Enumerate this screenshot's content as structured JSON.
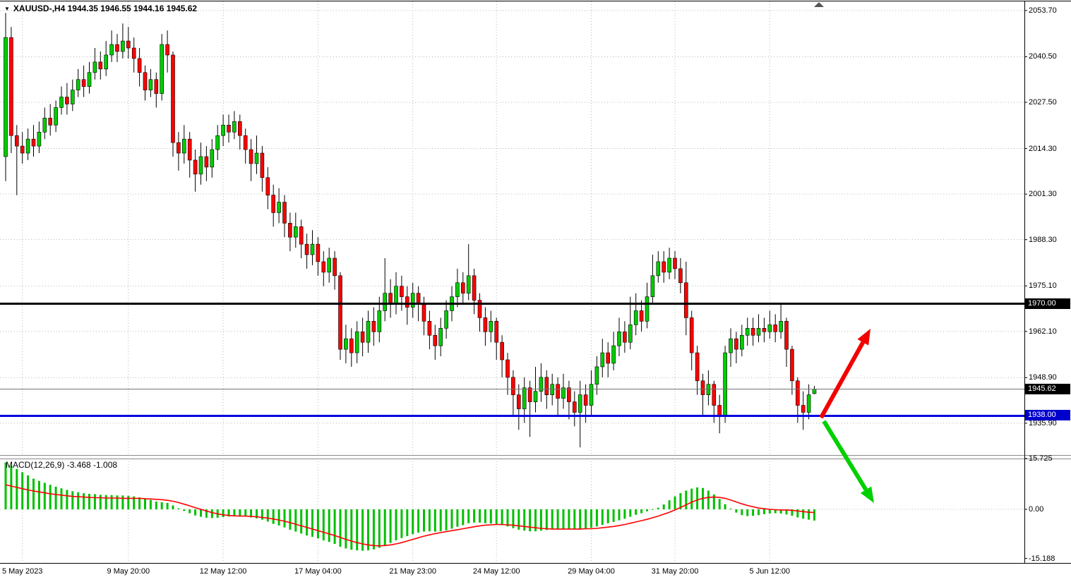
{
  "header": {
    "dropdown_icon": "▼",
    "display": "XAUUSD-,H4  1944.35 1946.55 1944.16 1945.62"
  },
  "macd": {
    "label": "MACD(12,26,9) -3.468 -1.008"
  },
  "price_axis": {
    "ticks": [
      2053.7,
      2040.5,
      2027.5,
      2014.3,
      2001.3,
      1988.3,
      1975.1,
      1962.1,
      1948.9,
      1935.9
    ],
    "badges": [
      {
        "text": "1970.00",
        "price": 1970.0,
        "bg": "#000000"
      },
      {
        "text": "1945.62",
        "price": 1945.62,
        "bg": "#000000"
      },
      {
        "text": "1938.00",
        "price": 1938.0,
        "bg": "#0000cd"
      }
    ]
  },
  "macd_axis": {
    "ticks": [
      "15.725",
      "0.00",
      "-15.188"
    ]
  },
  "time_axis": {
    "labels": [
      {
        "text": "5 May 2023",
        "candle_index": 3
      },
      {
        "text": "9 May 20:00",
        "candle_index": 22
      },
      {
        "text": "12 May 12:00",
        "candle_index": 39
      },
      {
        "text": "17 May 04:00",
        "candle_index": 56
      },
      {
        "text": "21 May 23:00",
        "candle_index": 73
      },
      {
        "text": "24 May 12:00",
        "candle_index": 88
      },
      {
        "text": "29 May 04:00",
        "candle_index": 105
      },
      {
        "text": "31 May 20:00",
        "candle_index": 120
      },
      {
        "text": "5 Jun 12:00",
        "candle_index": 137
      }
    ]
  },
  "colors": {
    "up": "#00cc00",
    "down": "#ff0000",
    "wick": "#000000",
    "grid": "#b8b8b8",
    "macd_hist": "#00c000",
    "macd_signal": "#ff0000",
    "resistance": "#000000",
    "support": "#0000e0",
    "last_price_line": "#707070",
    "arrow_up": "#f20000",
    "arrow_down": "#00d000"
  },
  "chart_data": {
    "type": "candlestick",
    "symbol": "XAUUSD-",
    "timeframe": "H4",
    "last_ohlc": {
      "open": 1944.35,
      "high": 1946.55,
      "low": 1944.16,
      "close": 1945.62
    },
    "levels": {
      "resistance": 1970.0,
      "support": 1938.0,
      "last_price": 1945.62
    },
    "ylim": [
      1926.5,
      2056.7
    ],
    "grid": true,
    "candles": [
      [
        2012,
        2053,
        2005,
        2046
      ],
      [
        2046,
        2049,
        2013,
        2018
      ],
      [
        2018,
        2021,
        2001,
        2015
      ],
      [
        2015,
        2019,
        2010,
        2013
      ],
      [
        2013,
        2020,
        2011,
        2017
      ],
      [
        2017,
        2021,
        2012,
        2015
      ],
      [
        2015,
        2022,
        2013,
        2019
      ],
      [
        2019,
        2026,
        2017,
        2023
      ],
      [
        2023,
        2027,
        2018,
        2021
      ],
      [
        2021,
        2028,
        2019,
        2026
      ],
      [
        2026,
        2032,
        2024,
        2029
      ],
      [
        2029,
        2033,
        2024,
        2027
      ],
      [
        2027,
        2034,
        2025,
        2031
      ],
      [
        2031,
        2037,
        2029,
        2034
      ],
      [
        2034,
        2038,
        2029,
        2032
      ],
      [
        2032,
        2039,
        2030,
        2036
      ],
      [
        2036,
        2043,
        2034,
        2039
      ],
      [
        2039,
        2042,
        2034,
        2037
      ],
      [
        2037,
        2045,
        2035,
        2041
      ],
      [
        2041,
        2048,
        2039,
        2044
      ],
      [
        2044,
        2047,
        2039,
        2042
      ],
      [
        2042,
        2050,
        2040,
        2045
      ],
      [
        2045,
        2049,
        2040,
        2043
      ],
      [
        2043,
        2046,
        2036,
        2040
      ],
      [
        2040,
        2043,
        2032,
        2036
      ],
      [
        2036,
        2038,
        2028,
        2031
      ],
      [
        2031,
        2037,
        2029,
        2034
      ],
      [
        2034,
        2036,
        2026,
        2030
      ],
      [
        2030,
        2047,
        2028,
        2044
      ],
      [
        2044,
        2048,
        2036,
        2041
      ],
      [
        2041,
        2042,
        2012,
        2016
      ],
      [
        2016,
        2019,
        2008,
        2013
      ],
      [
        2013,
        2021,
        2010,
        2017
      ],
      [
        2017,
        2019,
        2006,
        2011
      ],
      [
        2011,
        2014,
        2002,
        2007
      ],
      [
        2007,
        2016,
        2004,
        2012
      ],
      [
        2012,
        2015,
        2005,
        2009
      ],
      [
        2009,
        2017,
        2006,
        2014
      ],
      [
        2014,
        2021,
        2011,
        2018
      ],
      [
        2018,
        2024,
        2015,
        2021
      ],
      [
        2021,
        2024,
        2016,
        2019
      ],
      [
        2019,
        2025,
        2017,
        2022
      ],
      [
        2022,
        2024,
        2014,
        2018
      ],
      [
        2018,
        2020,
        2010,
        2014
      ],
      [
        2014,
        2017,
        2005,
        2010
      ],
      [
        2010,
        2018,
        2007,
        2013
      ],
      [
        2013,
        2015,
        2002,
        2006
      ],
      [
        2006,
        2009,
        1997,
        2001
      ],
      [
        2001,
        2004,
        1992,
        1996
      ],
      [
        1996,
        2003,
        1993,
        1999
      ],
      [
        1999,
        2001,
        1989,
        1993
      ],
      [
        1993,
        1996,
        1985,
        1989
      ],
      [
        1989,
        1996,
        1986,
        1992
      ],
      [
        1992,
        1994,
        1983,
        1987
      ],
      [
        1987,
        1990,
        1980,
        1984
      ],
      [
        1984,
        1991,
        1981,
        1987
      ],
      [
        1987,
        1989,
        1978,
        1982
      ],
      [
        1982,
        1985,
        1975,
        1979
      ],
      [
        1979,
        1986,
        1976,
        1983
      ],
      [
        1983,
        1985,
        1974,
        1978
      ],
      [
        1978,
        1979,
        1954,
        1957
      ],
      [
        1957,
        1964,
        1953,
        1960
      ],
      [
        1960,
        1963,
        1952,
        1956
      ],
      [
        1956,
        1965,
        1953,
        1962
      ],
      [
        1962,
        1966,
        1955,
        1959
      ],
      [
        1959,
        1968,
        1956,
        1965
      ],
      [
        1965,
        1969,
        1958,
        1962
      ],
      [
        1962,
        1972,
        1959,
        1968
      ],
      [
        1968,
        1983,
        1965,
        1973
      ],
      [
        1973,
        1977,
        1966,
        1970
      ],
      [
        1970,
        1979,
        1967,
        1975
      ],
      [
        1975,
        1978,
        1968,
        1972
      ],
      [
        1972,
        1975,
        1964,
        1969
      ],
      [
        1969,
        1976,
        1966,
        1973
      ],
      [
        1973,
        1975,
        1965,
        1970
      ],
      [
        1970,
        1972,
        1961,
        1965
      ],
      [
        1965,
        1968,
        1957,
        1961
      ],
      [
        1961,
        1964,
        1954,
        1958
      ],
      [
        1958,
        1966,
        1955,
        1963
      ],
      [
        1963,
        1971,
        1960,
        1968
      ],
      [
        1968,
        1975,
        1965,
        1972
      ],
      [
        1972,
        1980,
        1969,
        1976
      ],
      [
        1976,
        1979,
        1970,
        1973
      ],
      [
        1973,
        1987,
        1971,
        1978
      ],
      [
        1978,
        1980,
        1967,
        1971
      ],
      [
        1971,
        1973,
        1962,
        1966
      ],
      [
        1966,
        1969,
        1958,
        1962
      ],
      [
        1962,
        1968,
        1959,
        1965
      ],
      [
        1965,
        1966,
        1954,
        1959
      ],
      [
        1959,
        1961,
        1949,
        1954
      ],
      [
        1954,
        1956,
        1944,
        1949
      ],
      [
        1949,
        1951,
        1938,
        1944
      ],
      [
        1944,
        1947,
        1934,
        1940
      ],
      [
        1940,
        1949,
        1936,
        1946
      ],
      [
        1946,
        1948,
        1932,
        1942
      ],
      [
        1942,
        1952,
        1939,
        1945
      ],
      [
        1945,
        1953,
        1942,
        1949
      ],
      [
        1949,
        1951,
        1940,
        1944
      ],
      [
        1944,
        1950,
        1941,
        1947
      ],
      [
        1947,
        1949,
        1938,
        1943
      ],
      [
        1943,
        1950,
        1940,
        1946
      ],
      [
        1946,
        1948,
        1937,
        1942
      ],
      [
        1942,
        1945,
        1935,
        1939
      ],
      [
        1939,
        1948,
        1929,
        1944
      ],
      [
        1944,
        1947,
        1936,
        1941
      ],
      [
        1941,
        1951,
        1938,
        1947
      ],
      [
        1947,
        1955,
        1944,
        1952
      ],
      [
        1952,
        1960,
        1949,
        1956
      ],
      [
        1956,
        1959,
        1949,
        1953
      ],
      [
        1953,
        1962,
        1951,
        1958
      ],
      [
        1958,
        1966,
        1955,
        1962
      ],
      [
        1962,
        1965,
        1956,
        1959
      ],
      [
        1959,
        1972,
        1957,
        1964
      ],
      [
        1964,
        1973,
        1961,
        1968
      ],
      [
        1968,
        1971,
        1962,
        1965
      ],
      [
        1965,
        1976,
        1963,
        1972
      ],
      [
        1972,
        1984,
        1970,
        1978
      ],
      [
        1978,
        1985,
        1976,
        1982
      ],
      [
        1982,
        1985,
        1976,
        1979
      ],
      [
        1979,
        1986,
        1977,
        1983
      ],
      [
        1983,
        1985,
        1977,
        1980
      ],
      [
        1980,
        1983,
        1973,
        1976
      ],
      [
        1976,
        1982,
        1961,
        1966
      ],
      [
        1966,
        1968,
        1951,
        1956
      ],
      [
        1956,
        1958,
        1944,
        1948
      ],
      [
        1948,
        1950,
        1938,
        1944
      ],
      [
        1944,
        1951,
        1941,
        1947
      ],
      [
        1947,
        1948,
        1936,
        1941
      ],
      [
        1941,
        1944,
        1933,
        1938
      ],
      [
        1938,
        1958,
        1936,
        1956
      ],
      [
        1956,
        1963,
        1952,
        1960
      ],
      [
        1960,
        1962,
        1953,
        1957
      ],
      [
        1957,
        1964,
        1955,
        1961
      ],
      [
        1961,
        1966,
        1958,
        1963
      ],
      [
        1963,
        1966,
        1958,
        1961
      ],
      [
        1961,
        1967,
        1959,
        1963
      ],
      [
        1963,
        1966,
        1959,
        1962
      ],
      [
        1962,
        1968,
        1960,
        1964
      ],
      [
        1964,
        1967,
        1959,
        1962
      ],
      [
        1962,
        1970,
        1960,
        1965
      ],
      [
        1965,
        1966,
        1952,
        1957
      ],
      [
        1957,
        1958,
        1944,
        1948
      ],
      [
        1948,
        1949,
        1936,
        1941
      ],
      [
        1941,
        1945,
        1934,
        1939
      ],
      [
        1939,
        1947,
        1937,
        1944
      ],
      [
        1944.35,
        1946.55,
        1944.16,
        1945.62
      ]
    ],
    "macd": {
      "params": [
        12,
        26,
        9
      ],
      "last_macd": -3.468,
      "last_signal": -1.008,
      "ylim": [
        -15.188,
        15.725
      ],
      "histogram": [
        14.5,
        13.5,
        12.5,
        11.5,
        10.5,
        9.5,
        8.8,
        8.2,
        7.6,
        7.0,
        6.5,
        6.0,
        5.6,
        5.3,
        5.0,
        4.8,
        4.7,
        4.5,
        4.4,
        4.4,
        4.3,
        4.3,
        4.2,
        4.0,
        3.7,
        3.3,
        2.9,
        2.4,
        2.2,
        2.0,
        1.2,
        0.3,
        -0.5,
        -1.2,
        -1.9,
        -2.3,
        -2.6,
        -2.7,
        -2.6,
        -2.4,
        -2.2,
        -2.0,
        -2.0,
        -2.2,
        -2.5,
        -2.8,
        -3.2,
        -3.8,
        -4.5,
        -5.0,
        -5.6,
        -6.3,
        -6.9,
        -7.5,
        -8.1,
        -8.5,
        -9.0,
        -9.6,
        -10.1,
        -10.7,
        -11.6,
        -12.1,
        -12.5,
        -12.7,
        -12.8,
        -12.7,
        -12.4,
        -11.9,
        -11.2,
        -10.4,
        -9.6,
        -8.9,
        -8.3,
        -7.7,
        -7.2,
        -6.9,
        -6.8,
        -6.9,
        -6.8,
        -6.5,
        -6.0,
        -5.4,
        -4.9,
        -4.3,
        -4.1,
        -4.1,
        -4.3,
        -4.4,
        -4.6,
        -4.9,
        -5.3,
        -5.8,
        -6.3,
        -6.6,
        -6.8,
        -6.8,
        -6.6,
        -6.4,
        -6.2,
        -6.1,
        -6.0,
        -6.0,
        -6.1,
        -6.1,
        -6.0,
        -5.7,
        -5.3,
        -4.8,
        -4.3,
        -3.9,
        -3.4,
        -2.9,
        -2.3,
        -1.7,
        -1.2,
        -0.6,
        0.1,
        0.5,
        1.5,
        2.8,
        4.0,
        5.0,
        5.8,
        6.4,
        6.8,
        6.6,
        5.8,
        4.6,
        3.2,
        1.6,
        0.2,
        -1.0,
        -1.8,
        -2.1,
        -2.0,
        -1.8,
        -1.5,
        -1.3,
        -1.2,
        -1.3,
        -1.6,
        -2.0,
        -2.5,
        -2.9,
        -3.2,
        -3.468
      ],
      "signal": [
        7.6,
        7.2,
        6.8,
        6.4,
        6.0,
        5.7,
        5.4,
        5.1,
        4.8,
        4.6,
        4.4,
        4.2,
        4.0,
        3.9,
        3.8,
        3.7,
        3.6,
        3.6,
        3.5,
        3.5,
        3.5,
        3.4,
        3.4,
        3.4,
        3.4,
        3.3,
        3.2,
        3.1,
        3.0,
        2.8,
        2.5,
        2.1,
        1.6,
        1.1,
        0.5,
        0.0,
        -0.5,
        -1.0,
        -1.4,
        -1.7,
        -1.9,
        -2.0,
        -2.1,
        -2.1,
        -2.2,
        -2.3,
        -2.5,
        -2.7,
        -3.0,
        -3.3,
        -3.7,
        -4.1,
        -4.6,
        -5.1,
        -5.6,
        -6.1,
        -6.6,
        -7.1,
        -7.6,
        -8.1,
        -8.7,
        -9.3,
        -9.8,
        -10.3,
        -10.7,
        -11.0,
        -11.2,
        -11.3,
        -11.2,
        -11.0,
        -10.7,
        -10.3,
        -9.8,
        -9.3,
        -8.8,
        -8.3,
        -7.9,
        -7.5,
        -7.2,
        -6.9,
        -6.6,
        -6.3,
        -6.0,
        -5.7,
        -5.4,
        -5.1,
        -4.9,
        -4.8,
        -4.7,
        -4.7,
        -4.8,
        -4.9,
        -5.1,
        -5.3,
        -5.5,
        -5.7,
        -5.9,
        -6.0,
        -6.1,
        -6.1,
        -6.1,
        -6.1,
        -6.1,
        -6.1,
        -6.0,
        -6.0,
        -5.9,
        -5.7,
        -5.5,
        -5.3,
        -5.0,
        -4.7,
        -4.3,
        -3.9,
        -3.5,
        -3.1,
        -2.6,
        -2.1,
        -1.5,
        -0.9,
        -0.2,
        0.6,
        1.4,
        2.2,
        2.9,
        3.4,
        3.7,
        3.8,
        3.7,
        3.4,
        2.9,
        2.3,
        1.7,
        1.2,
        0.8,
        0.4,
        0.2,
        0.0,
        -0.1,
        -0.2,
        -0.2,
        -0.3,
        -0.5,
        -0.7,
        -0.9,
        -1.008
      ]
    },
    "annotations": [
      {
        "id": "bullish-arrow",
        "type": "arrow",
        "direction": "up",
        "color_key": "arrow_up",
        "from": [
          1163,
          592
        ],
        "to": [
          1233,
          466
        ]
      },
      {
        "id": "bearish-arrow",
        "type": "arrow",
        "direction": "down",
        "color_key": "arrow_down",
        "from": [
          1167,
          597
        ],
        "to": [
          1238,
          713
        ]
      }
    ]
  }
}
